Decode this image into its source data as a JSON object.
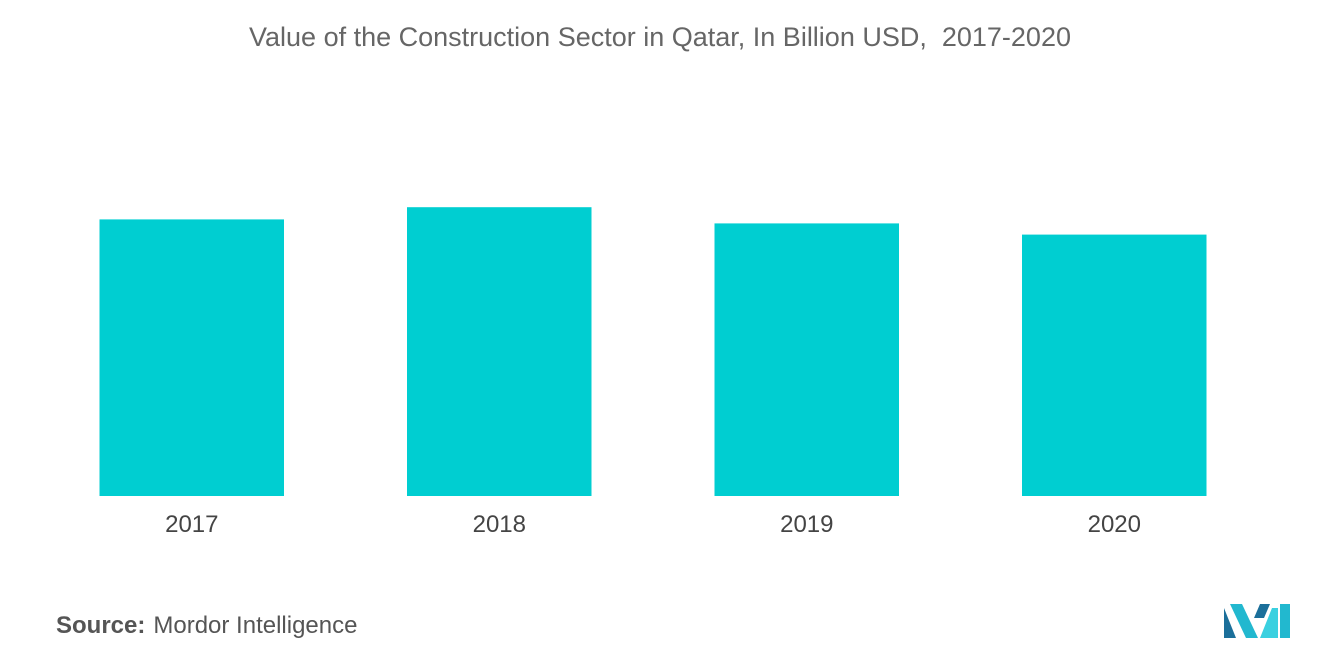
{
  "title": "Value of the Construction Sector in Qatar, In Billion USD,  2017-2020",
  "source": {
    "label": "Source:",
    "text": "Mordor Intelligence"
  },
  "logo": {
    "icon": "mordor-intelligence-logo-icon",
    "colors": [
      "#1b6f9a",
      "#22b8cf",
      "#3ad0e0"
    ]
  },
  "chart_data": {
    "type": "bar",
    "categories": [
      "2017",
      "2018",
      "2019",
      "2020"
    ],
    "values": [
      54.6,
      57.0,
      53.8,
      51.6
    ],
    "ylim": [
      0,
      75
    ],
    "xlabel": "",
    "ylabel": "",
    "grid": false,
    "legend": "none",
    "bar_color": "#00ced1"
  }
}
